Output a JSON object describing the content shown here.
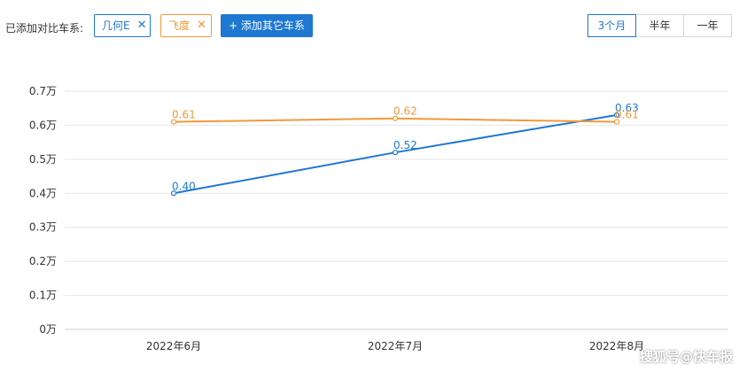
{
  "toolbar": {
    "compare_label": "已添加对比车系:",
    "tags": [
      {
        "label": "几何E",
        "close_icon": "close-icon",
        "color": "#1e78d2"
      },
      {
        "label": "飞度",
        "close_icon": "close-icon",
        "color": "#f19a3a"
      }
    ],
    "add_button": "+ 添加其它车系",
    "ranges": [
      {
        "label": "3个月",
        "active": true
      },
      {
        "label": "半年",
        "active": false
      },
      {
        "label": "一年",
        "active": false
      }
    ]
  },
  "watermark": "搜狐号@快车报",
  "chart_data": {
    "type": "line",
    "categories": [
      "2022年6月",
      "2022年7月",
      "2022年8月"
    ],
    "y_ticks": [
      "0万",
      "0.1万",
      "0.2万",
      "0.3万",
      "0.4万",
      "0.5万",
      "0.6万",
      "0.7万"
    ],
    "ylim": [
      0,
      0.7
    ],
    "grid": true,
    "series": [
      {
        "name": "几何E",
        "color": "#1e78d2",
        "values": [
          0.4,
          0.52,
          0.63
        ],
        "labels": [
          "0.40",
          "0.52",
          "0.63"
        ]
      },
      {
        "name": "飞度",
        "color": "#f19a3a",
        "values": [
          0.61,
          0.62,
          0.61
        ],
        "labels": [
          "0.61",
          "0.62",
          "0.61"
        ]
      }
    ]
  }
}
